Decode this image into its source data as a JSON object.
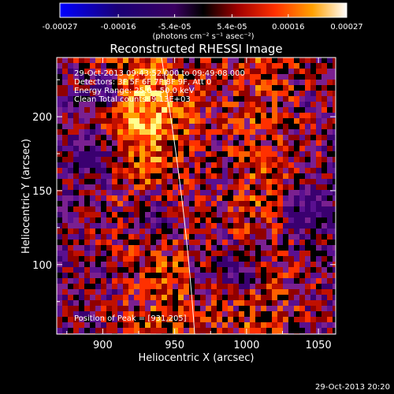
{
  "chart_data": {
    "type": "heatmap",
    "title": "Reconstructed RHESSI Image",
    "xlabel": "Heliocentric X (arcsec)",
    "ylabel": "Heliocentric Y (arcsec)",
    "xlim": [
      868,
      1062
    ],
    "ylim": [
      53,
      240
    ],
    "x_ticks": [
      900,
      950,
      1000,
      1050
    ],
    "y_ticks": [
      100,
      150,
      200
    ],
    "colorbar": {
      "min": -0.00027,
      "max": 0.00027,
      "tick_labels": [
        "-0.00027",
        "-0.00016",
        "-5.4e-05",
        "5.4e-05",
        "0.00016",
        "0.00027"
      ],
      "units_label": "(photons cm⁻² s⁻¹ asec⁻²)"
    },
    "annotations": [
      "29-Oct-2013 09:43:52.000 to 09:49:08.000",
      "Detectors: 3F 5F 6F 7F 8F 9F, Att 0",
      "Energy Range: 25.0 - 50.0 keV",
      "Clean     Total counts: 9.13E+03"
    ],
    "peak_label": "Position of Peak = [931,205]",
    "peak": [
      931,
      205
    ]
  },
  "footer_timestamp": "29-Oct-2013 20:20"
}
